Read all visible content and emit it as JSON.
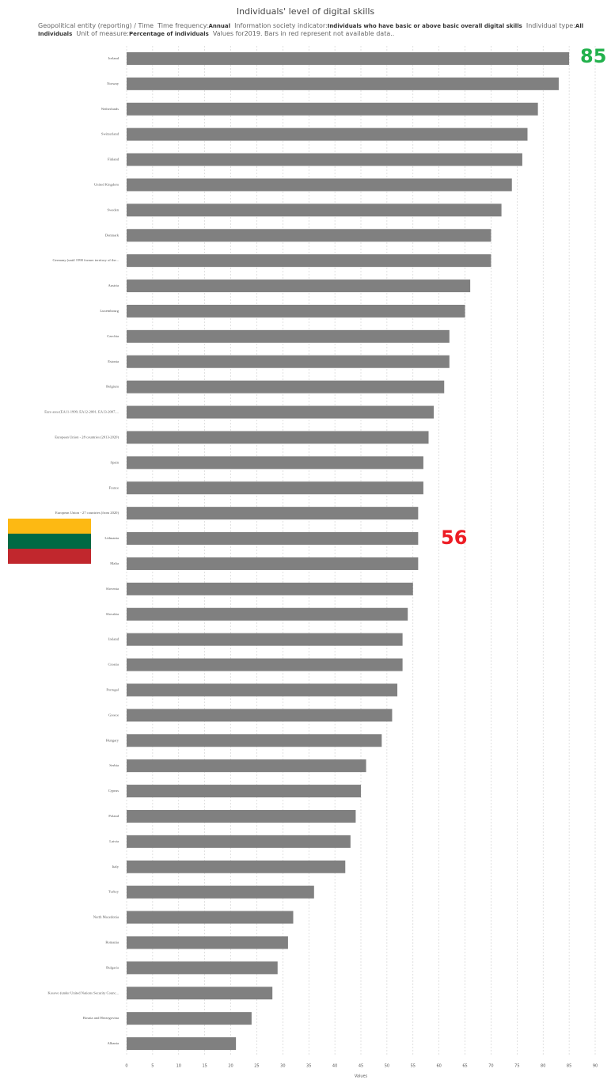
{
  "chart_data": {
    "type": "hbar",
    "title": "Individuals' level of digital skills",
    "subtitle_parts": [
      {
        "text": "Geopolitical entity (reporting) / Time  Time frequency:",
        "bold": false
      },
      {
        "text": "Annual",
        "bold": true
      },
      {
        "text": "  Information society indicator:",
        "bold": false
      },
      {
        "text": "Individuals who have basic or above basic overall digital skills",
        "bold": true
      },
      {
        "text": "  Individual type:",
        "bold": false
      },
      {
        "text": "All Individuals",
        "bold": true
      },
      {
        "text": "  Unit of measure:",
        "bold": false
      },
      {
        "text": "Percentage of individuals",
        "bold": true
      },
      {
        "text": "  Values for2019. Bars in red represent not available data..",
        "bold": false
      }
    ],
    "categories": [
      "Iceland",
      "Norway",
      "Netherlands",
      "Switzerland",
      "Finland",
      "United Kingdom",
      "Sweden",
      "Denmark",
      "Germany (until 1990 former territory of the...",
      "Austria",
      "Luxembourg",
      "Czechia",
      "Estonia",
      "Belgium",
      "Euro area (EA11-1999, EA12-2001, EA13-2007,...",
      "European Union - 28 countries (2013-2020)",
      "Spain",
      "France",
      "European Union - 27 countries (from 2020)",
      "Lithuania",
      "Malta",
      "Slovenia",
      "Slovakia",
      "Ireland",
      "Croatia",
      "Portugal",
      "Greece",
      "Hungary",
      "Serbia",
      "Cyprus",
      "Poland",
      "Latvia",
      "Italy",
      "Turkey",
      "North Macedonia",
      "Romania",
      "Bulgaria",
      "Kosovo (under United Nations Security Counc...",
      "Bosnia and Herzegovina",
      "Albania"
    ],
    "values": [
      85,
      83,
      79,
      77,
      76,
      74,
      72,
      70,
      70,
      66,
      65,
      62,
      62,
      61,
      59,
      58,
      57,
      57,
      56,
      56,
      56,
      55,
      54,
      53,
      53,
      52,
      51,
      49,
      46,
      45,
      44,
      43,
      42,
      36,
      32,
      31,
      29,
      28,
      24,
      21
    ],
    "color": "#808080",
    "xlim": [
      0,
      90
    ],
    "xticks": [
      0,
      5,
      10,
      15,
      20,
      25,
      30,
      35,
      40,
      45,
      50,
      55,
      60,
      65,
      70,
      75,
      80,
      85,
      90
    ],
    "xlabel": "Values",
    "grid": true,
    "annotations": [
      {
        "text": "85",
        "color": "#22b14c"
      },
      {
        "text": "56",
        "color": "#ed1c24"
      }
    ]
  }
}
